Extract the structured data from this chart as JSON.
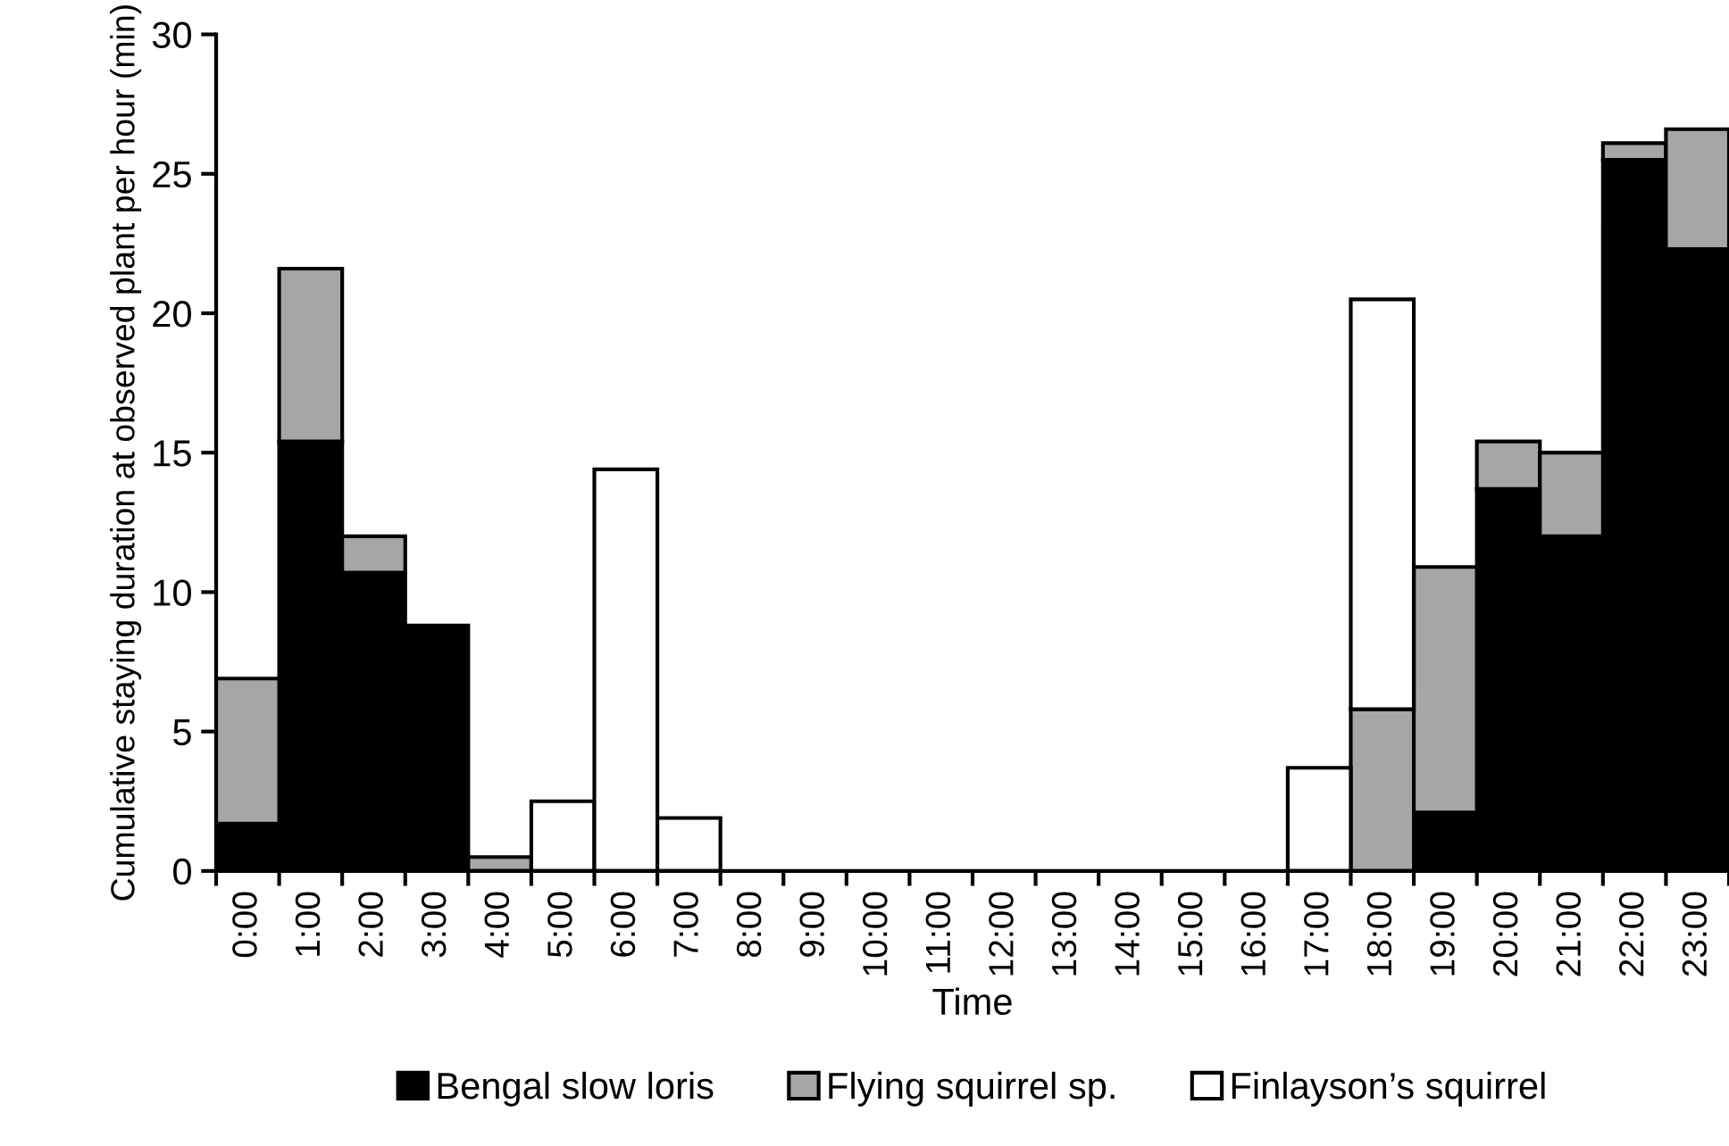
{
  "chart_data": {
    "type": "bar",
    "stacked": true,
    "xlabel": "Time",
    "ylabel": "Cumulative staying duration at observed plant per hour (min)",
    "categories": [
      "0:00",
      "1:00",
      "2:00",
      "3:00",
      "4:00",
      "5:00",
      "6:00",
      "7:00",
      "8:00",
      "9:00",
      "10:00",
      "11:00",
      "12:00",
      "13:00",
      "14:00",
      "15:00",
      "16:00",
      "17:00",
      "18:00",
      "19:00",
      "20:00",
      "21:00",
      "22:00",
      "23:00"
    ],
    "series": [
      {
        "name": "Bengal slow loris",
        "color": "#000000",
        "values": [
          1.7,
          15.4,
          10.7,
          8.8,
          0,
          0,
          0,
          0,
          0,
          0,
          0,
          0,
          0,
          0,
          0,
          0,
          0,
          0,
          0,
          2.1,
          13.7,
          12.0,
          25.5,
          22.3
        ]
      },
      {
        "name": "Flying squirrel sp.",
        "color": "#a6a6a6",
        "values": [
          5.2,
          6.2,
          1.3,
          0,
          0.5,
          0,
          0,
          0,
          0,
          0,
          0,
          0,
          0,
          0,
          0,
          0,
          0,
          0,
          5.8,
          8.8,
          1.7,
          3.0,
          0.6,
          4.3
        ]
      },
      {
        "name": "Finlayson’s squirrel",
        "color": "#ffffff",
        "values": [
          0,
          0,
          0,
          0,
          0,
          2.5,
          14.4,
          1.9,
          0,
          0,
          0,
          0,
          0,
          0,
          0,
          0,
          0,
          3.7,
          14.7,
          0,
          0,
          0,
          0,
          0
        ]
      }
    ],
    "ylim": [
      0,
      30
    ],
    "yticks": [
      0,
      5,
      10,
      15,
      20,
      25,
      30
    ],
    "grid": false,
    "legend": "bottom"
  }
}
